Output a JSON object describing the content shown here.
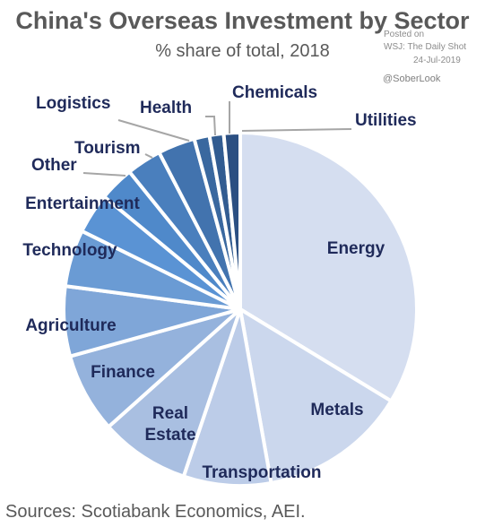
{
  "header": {
    "title": "China's Overseas Investment by Sector",
    "subtitle": "% share of total, 2018"
  },
  "watermark": {
    "posted": "Posted on",
    "source": "WSJ: The Daily Shot",
    "date": "24-Jul-2019",
    "handle": "@SoberLook"
  },
  "footer": {
    "sources": "Sources: Scotiabank Economics, AEI."
  },
  "chart_data": {
    "type": "pie",
    "title": "China's Overseas Investment by Sector",
    "subtitle": "% share of total, 2018",
    "start_angle_deg": 0,
    "direction": "clockwise",
    "categories": [
      "Energy",
      "Metals",
      "Transportation",
      "Real Estate",
      "Finance",
      "Agriculture",
      "Technology",
      "Entertainment",
      "Other",
      "Tourism",
      "Logistics",
      "Health",
      "Chemicals",
      "Utilities"
    ],
    "slices": [
      {
        "label": "Energy",
        "value": 33.7,
        "color": "#d5def0"
      },
      {
        "label": "Metals",
        "value": 13.5,
        "color": "#cbd7ed"
      },
      {
        "label": "Transportation",
        "value": 8.0,
        "color": "#bccce8"
      },
      {
        "label": "Real Estate",
        "value": 8.2,
        "color": "#a9bfe1"
      },
      {
        "label": "Finance",
        "value": 7.3,
        "color": "#94b2dc"
      },
      {
        "label": "Agriculture",
        "value": 6.4,
        "color": "#7fa6d8"
      },
      {
        "label": "Technology",
        "value": 5.2,
        "color": "#6a9bd4"
      },
      {
        "label": "Entertainment",
        "value": 3.7,
        "color": "#5a93d4"
      },
      {
        "label": "Other",
        "value": 3.2,
        "color": "#4f89ca"
      },
      {
        "label": "Tourism",
        "value": 3.2,
        "color": "#4a7fbd"
      },
      {
        "label": "Logistics",
        "value": 3.4,
        "color": "#4273ae"
      },
      {
        "label": "Health",
        "value": 1.4,
        "color": "#3a689f"
      },
      {
        "label": "Chemicals",
        "value": 1.3,
        "color": "#325c91"
      },
      {
        "label": "Utilities",
        "value": 1.5,
        "color": "#2b4f82"
      }
    ]
  }
}
